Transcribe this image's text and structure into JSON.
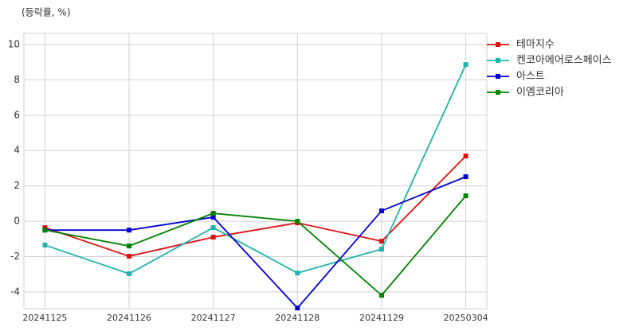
{
  "chart_data": {
    "type": "line",
    "unit_label": "(등락률, %)",
    "categories": [
      "20241125",
      "20241126",
      "20241127",
      "20241128",
      "20241129",
      "20250304"
    ],
    "series": [
      {
        "name": "테마지수",
        "color": "#dd1111",
        "values": [
          -0.36,
          -1.98,
          -0.9,
          -0.09,
          -1.13,
          3.69
        ]
      },
      {
        "name": "켄코아에어로스페이스",
        "color": "#20b2aa",
        "values": [
          -1.35,
          -2.97,
          -0.36,
          -2.93,
          -1.58,
          8.87
        ]
      },
      {
        "name": "아스트",
        "color": "#0000cd",
        "values": [
          -0.5,
          -0.5,
          0.23,
          -4.91,
          0.59,
          2.52
        ]
      },
      {
        "name": "이엠코리아",
        "color": "#008000",
        "values": [
          -0.5,
          -1.4,
          0.45,
          0.0,
          -4.19,
          1.44
        ]
      }
    ],
    "ylim": [
      -4.95,
      10.63
    ],
    "yticks": [
      -4,
      -2,
      0,
      2,
      4,
      6,
      8,
      10
    ],
    "grid": true,
    "legend": "outside-right"
  }
}
